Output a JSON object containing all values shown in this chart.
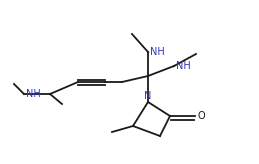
{
  "bg_color": "#ffffff",
  "line_color": "#1a1a1a",
  "nh_color": "#3333bb",
  "n_color": "#3333bb",
  "figsize": [
    2.59,
    1.64
  ],
  "dpi": 100,
  "xlim": [
    0,
    259
  ],
  "ylim": [
    0,
    164
  ]
}
